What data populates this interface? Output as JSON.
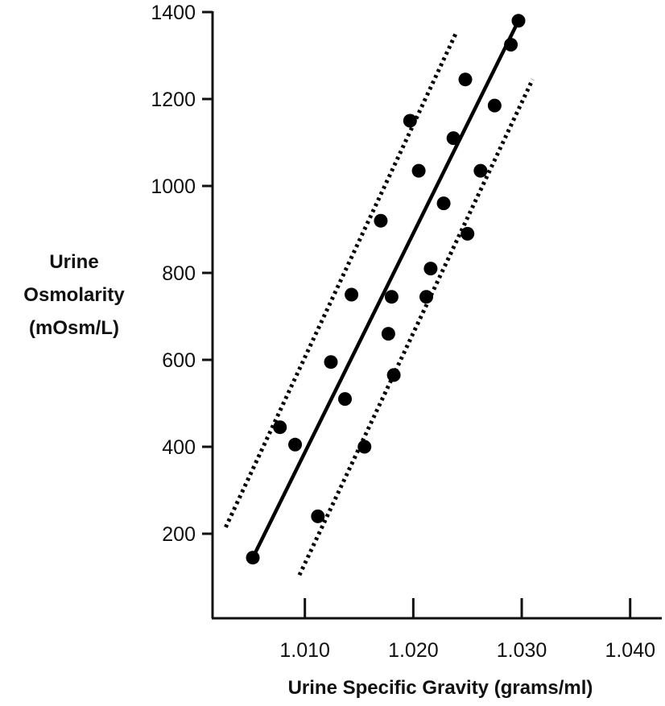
{
  "chart_data": {
    "type": "scatter",
    "title": "",
    "xlabel": "Urine Specific Gravity (grams/ml)",
    "ylabel_lines": [
      "Urine",
      "Osmolarity",
      "(mOsm/L)"
    ],
    "xlim": [
      1.0,
      1.042
    ],
    "ylim": [
      0,
      1400
    ],
    "x_ticks": [
      1.01,
      1.02,
      1.03,
      1.04
    ],
    "x_tick_labels": [
      "1.010",
      "1.020",
      "1.030",
      "1.040"
    ],
    "y_ticks": [
      200,
      400,
      600,
      800,
      1000,
      1200,
      1400
    ],
    "y_tick_labels": [
      "200",
      "400",
      "600",
      "800",
      "1000",
      "1200",
      "1400"
    ],
    "grid": false,
    "legend": "none",
    "points": [
      {
        "x": 1.0052,
        "y": 145
      },
      {
        "x": 1.0077,
        "y": 445
      },
      {
        "x": 1.0091,
        "y": 405
      },
      {
        "x": 1.0112,
        "y": 240
      },
      {
        "x": 1.0124,
        "y": 595
      },
      {
        "x": 1.0137,
        "y": 510
      },
      {
        "x": 1.0143,
        "y": 750
      },
      {
        "x": 1.0155,
        "y": 400
      },
      {
        "x": 1.017,
        "y": 920
      },
      {
        "x": 1.0177,
        "y": 660
      },
      {
        "x": 1.018,
        "y": 745
      },
      {
        "x": 1.0182,
        "y": 565
      },
      {
        "x": 1.0197,
        "y": 1150
      },
      {
        "x": 1.0205,
        "y": 1035
      },
      {
        "x": 1.0212,
        "y": 745
      },
      {
        "x": 1.0216,
        "y": 810
      },
      {
        "x": 1.0228,
        "y": 960
      },
      {
        "x": 1.0237,
        "y": 1110
      },
      {
        "x": 1.0248,
        "y": 1245
      },
      {
        "x": 1.025,
        "y": 890
      },
      {
        "x": 1.0262,
        "y": 1035
      },
      {
        "x": 1.0275,
        "y": 1185
      },
      {
        "x": 1.029,
        "y": 1325
      },
      {
        "x": 1.0297,
        "y": 1380
      }
    ],
    "regression_line": {
      "x": [
        1.0052,
        1.0297
      ],
      "y": [
        145,
        1380
      ]
    },
    "confidence_bands": [
      {
        "x": [
          1.0027,
          1.024
        ],
        "y": [
          215,
          1355
        ]
      },
      {
        "x": [
          1.0095,
          1.031
        ],
        "y": [
          105,
          1245
        ]
      }
    ],
    "colors": {
      "points": "#000000",
      "lines": "#000000",
      "axes": "#111111"
    }
  }
}
